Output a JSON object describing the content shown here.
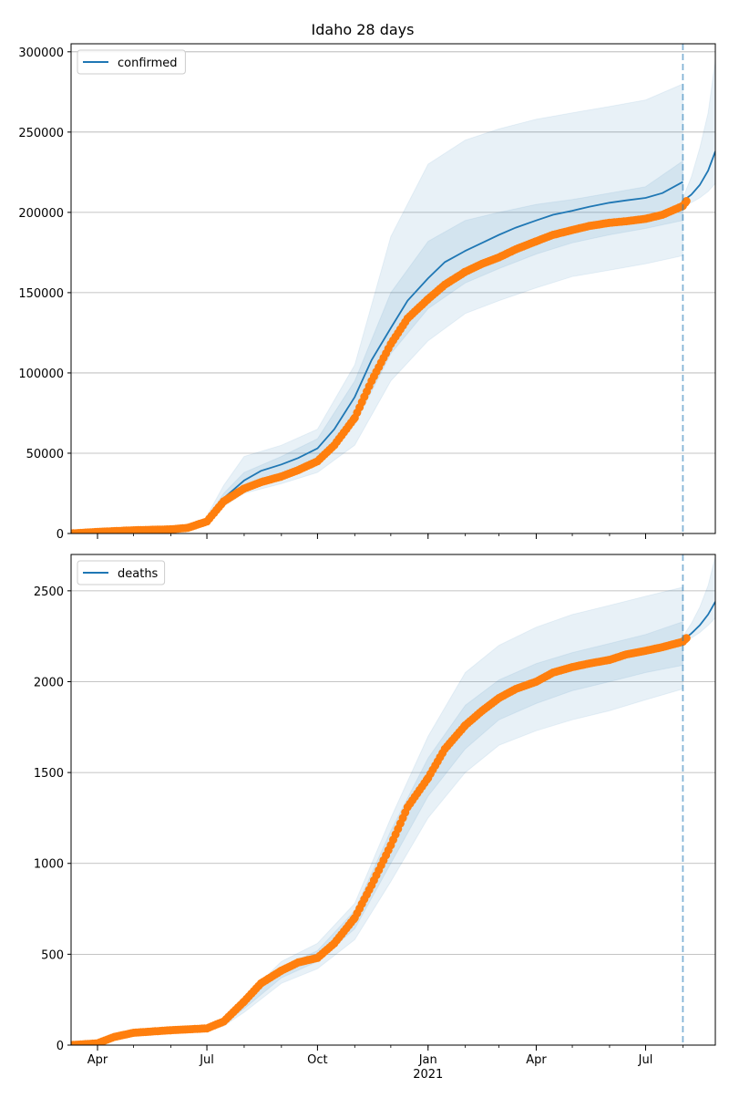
{
  "figure": {
    "title": "Idaho 28 days"
  },
  "chart_data": [
    {
      "type": "line",
      "title": "Idaho 28 days",
      "xlabel": "",
      "ylabel": "",
      "ylim": [
        0,
        305000
      ],
      "yticks": [
        0,
        50000,
        100000,
        150000,
        200000,
        250000,
        300000
      ],
      "xlim": [
        "2020-03-10",
        "2021-08-28"
      ],
      "xticks": [
        {
          "date": "2020-04-01",
          "label": "Apr"
        },
        {
          "date": "2020-07-01",
          "label": "Jul"
        },
        {
          "date": "2020-10-01",
          "label": "Oct"
        },
        {
          "date": "2021-01-01",
          "label": "Jan",
          "sublabel": "2021"
        },
        {
          "date": "2021-04-01",
          "label": "Apr"
        },
        {
          "date": "2021-07-01",
          "label": "Jul"
        }
      ],
      "grid": "y",
      "legend": {
        "position": "top-left",
        "entries": [
          "confirmed"
        ]
      },
      "forecast_start": "2021-08-01",
      "series": [
        {
          "name": "confirmed",
          "kind": "model median",
          "color": "#1f77b4",
          "x": [
            "2020-03-10",
            "2020-04-01",
            "2020-05-01",
            "2020-06-01",
            "2020-06-15",
            "2020-07-01",
            "2020-07-15",
            "2020-08-01",
            "2020-08-15",
            "2020-09-01",
            "2020-09-15",
            "2020-10-01",
            "2020-10-15",
            "2020-11-01",
            "2020-11-15",
            "2020-12-01",
            "2020-12-15",
            "2021-01-01",
            "2021-01-15",
            "2021-02-01",
            "2021-02-15",
            "2021-03-01",
            "2021-03-15",
            "2021-04-01",
            "2021-04-15",
            "2021-05-01",
            "2021-05-15",
            "2021-06-01",
            "2021-06-15",
            "2021-07-01",
            "2021-07-15",
            "2021-08-01"
          ],
          "y": [
            0,
            1000,
            2000,
            3000,
            4200,
            8500,
            22000,
            33000,
            39000,
            43000,
            47000,
            53000,
            65000,
            85000,
            108000,
            128000,
            145000,
            159000,
            169000,
            176000,
            181000,
            186000,
            190500,
            195000,
            198500,
            201000,
            203500,
            206000,
            207500,
            209000,
            212000,
            219000
          ]
        },
        {
          "name": "",
          "kind": "model forecast median",
          "color": "#1f77b4",
          "x": [
            "2021-08-01",
            "2021-08-08",
            "2021-08-15",
            "2021-08-22",
            "2021-08-28"
          ],
          "y": [
            207000,
            211000,
            217000,
            226000,
            238000
          ]
        },
        {
          "name": "",
          "kind": "observed",
          "color": "#ff7f0e",
          "x": [
            "2020-03-10",
            "2020-04-01",
            "2020-05-01",
            "2020-06-01",
            "2020-06-15",
            "2020-07-01",
            "2020-07-15",
            "2020-08-01",
            "2020-08-15",
            "2020-09-01",
            "2020-09-15",
            "2020-10-01",
            "2020-10-15",
            "2020-11-01",
            "2020-11-15",
            "2020-12-01",
            "2020-12-15",
            "2021-01-01",
            "2021-01-15",
            "2021-02-01",
            "2021-02-15",
            "2021-03-01",
            "2021-03-15",
            "2021-04-01",
            "2021-04-15",
            "2021-05-01",
            "2021-05-15",
            "2021-06-01",
            "2021-06-15",
            "2021-07-01",
            "2021-07-15",
            "2021-08-01",
            "2021-08-04"
          ],
          "y": [
            0,
            1000,
            2000,
            2600,
            3500,
            7500,
            20000,
            28000,
            32000,
            35500,
            39500,
            45000,
            55000,
            72000,
            95000,
            118000,
            134000,
            146000,
            155000,
            163000,
            168000,
            172000,
            177000,
            182000,
            186000,
            189000,
            191500,
            193500,
            194500,
            196000,
            198500,
            204000,
            207000
          ]
        }
      ],
      "bands": [
        {
          "kind": "outer interval",
          "color": "#1f77b4",
          "x": [
            "2020-07-01",
            "2020-07-15",
            "2020-08-01",
            "2020-09-01",
            "2020-10-01",
            "2020-11-01",
            "2020-12-01",
            "2021-01-01",
            "2021-02-01",
            "2021-03-01",
            "2021-04-01",
            "2021-05-01",
            "2021-06-01",
            "2021-07-01",
            "2021-08-01"
          ],
          "lower": [
            7000,
            17000,
            25000,
            31000,
            38000,
            55000,
            95000,
            120000,
            137000,
            145000,
            153000,
            160000,
            164000,
            168000,
            173000
          ],
          "upper": [
            11000,
            30000,
            48000,
            55000,
            65000,
            105000,
            185000,
            230000,
            245000,
            252000,
            258000,
            262000,
            266000,
            270000,
            280000
          ]
        },
        {
          "kind": "inner interval",
          "color": "#1f77b4",
          "x": [
            "2020-07-01",
            "2020-07-15",
            "2020-08-01",
            "2020-09-01",
            "2020-10-01",
            "2020-11-01",
            "2020-12-01",
            "2021-01-01",
            "2021-02-01",
            "2021-03-01",
            "2021-04-01",
            "2021-05-01",
            "2021-06-01",
            "2021-07-01",
            "2021-08-01"
          ],
          "lower": [
            8000,
            19000,
            29000,
            37000,
            45000,
            68000,
            112000,
            140000,
            156000,
            165000,
            174000,
            181000,
            186000,
            190000,
            195000
          ],
          "upper": [
            9500,
            25000,
            38000,
            48000,
            59000,
            95000,
            150000,
            182000,
            195000,
            200000,
            205000,
            208000,
            212000,
            216000,
            232000
          ]
        },
        {
          "kind": "forecast outer interval",
          "color": "#1f77b4",
          "x": [
            "2021-08-01",
            "2021-08-08",
            "2021-08-15",
            "2021-08-22",
            "2021-08-28"
          ],
          "lower": [
            205000,
            206000,
            209000,
            213000,
            218000
          ],
          "upper": [
            209000,
            222000,
            240000,
            262000,
            295000
          ]
        }
      ]
    },
    {
      "type": "line",
      "title": "",
      "xlabel": "",
      "ylabel": "",
      "ylim": [
        0,
        2700
      ],
      "yticks": [
        0,
        500,
        1000,
        1500,
        2000,
        2500
      ],
      "xlim": [
        "2020-03-10",
        "2021-08-28"
      ],
      "xticks": [
        {
          "date": "2020-04-01",
          "label": "Apr"
        },
        {
          "date": "2020-07-01",
          "label": "Jul"
        },
        {
          "date": "2020-10-01",
          "label": "Oct"
        },
        {
          "date": "2021-01-01",
          "label": "Jan",
          "sublabel": "2021"
        },
        {
          "date": "2021-04-01",
          "label": "Apr"
        },
        {
          "date": "2021-07-01",
          "label": "Jul"
        }
      ],
      "grid": "y",
      "legend": {
        "position": "top-left",
        "entries": [
          "deaths"
        ]
      },
      "forecast_start": "2021-08-01",
      "series": [
        {
          "name": "deaths",
          "kind": "model median",
          "color": "#1f77b4",
          "x": [
            "2020-03-10",
            "2020-04-01",
            "2020-04-15",
            "2020-05-01",
            "2020-06-01",
            "2020-07-01",
            "2020-07-15",
            "2020-08-01",
            "2020-08-15",
            "2020-09-01",
            "2020-09-15",
            "2020-10-01",
            "2020-10-15",
            "2020-11-01",
            "2020-11-15",
            "2020-12-01",
            "2020-12-15",
            "2021-01-01",
            "2021-01-15",
            "2021-02-01",
            "2021-02-15",
            "2021-03-01",
            "2021-03-15",
            "2021-04-01",
            "2021-04-15",
            "2021-05-01",
            "2021-05-15",
            "2021-06-01",
            "2021-06-15",
            "2021-07-01",
            "2021-07-15",
            "2021-08-01"
          ],
          "y": [
            0,
            10,
            40,
            65,
            85,
            95,
            120,
            220,
            330,
            400,
            450,
            490,
            560,
            700,
            880,
            1100,
            1300,
            1470,
            1620,
            1750,
            1830,
            1900,
            1960,
            2010,
            2050,
            2080,
            2100,
            2125,
            2150,
            2170,
            2190,
            2230
          ]
        },
        {
          "name": "",
          "kind": "model forecast median",
          "color": "#1f77b4",
          "x": [
            "2021-08-01",
            "2021-08-08",
            "2021-08-15",
            "2021-08-22",
            "2021-08-28"
          ],
          "y": [
            2230,
            2265,
            2310,
            2370,
            2440
          ]
        },
        {
          "name": "",
          "kind": "observed",
          "color": "#ff7f0e",
          "x": [
            "2020-03-10",
            "2020-04-01",
            "2020-04-15",
            "2020-05-01",
            "2020-06-01",
            "2020-07-01",
            "2020-07-15",
            "2020-08-01",
            "2020-08-15",
            "2020-09-01",
            "2020-09-15",
            "2020-10-01",
            "2020-10-15",
            "2020-11-01",
            "2020-11-15",
            "2020-12-01",
            "2020-12-15",
            "2021-01-01",
            "2021-01-15",
            "2021-02-01",
            "2021-02-15",
            "2021-03-01",
            "2021-03-15",
            "2021-04-01",
            "2021-04-15",
            "2021-05-01",
            "2021-05-15",
            "2021-06-01",
            "2021-06-15",
            "2021-07-01",
            "2021-07-15",
            "2021-08-01",
            "2021-08-04"
          ],
          "y": [
            0,
            10,
            45,
            68,
            82,
            92,
            130,
            240,
            340,
            410,
            455,
            480,
            560,
            700,
            880,
            1100,
            1310,
            1470,
            1630,
            1760,
            1840,
            1910,
            1960,
            2000,
            2050,
            2080,
            2100,
            2120,
            2150,
            2170,
            2190,
            2220,
            2240
          ]
        }
      ],
      "bands": [
        {
          "kind": "outer interval",
          "color": "#1f77b4",
          "x": [
            "2020-07-01",
            "2020-07-15",
            "2020-08-01",
            "2020-09-01",
            "2020-10-01",
            "2020-11-01",
            "2020-12-01",
            "2021-01-01",
            "2021-02-01",
            "2021-03-01",
            "2021-04-01",
            "2021-05-01",
            "2021-06-01",
            "2021-07-01",
            "2021-08-01"
          ],
          "lower": [
            85,
            105,
            180,
            340,
            420,
            580,
            900,
            1250,
            1500,
            1650,
            1730,
            1790,
            1840,
            1900,
            1960
          ],
          "upper": [
            105,
            140,
            260,
            460,
            560,
            780,
            1250,
            1700,
            2050,
            2200,
            2300,
            2370,
            2420,
            2470,
            2520
          ]
        },
        {
          "kind": "inner interval",
          "color": "#1f77b4",
          "x": [
            "2020-07-01",
            "2020-07-15",
            "2020-08-01",
            "2020-09-01",
            "2020-10-01",
            "2020-11-01",
            "2020-12-01",
            "2021-01-01",
            "2021-02-01",
            "2021-03-01",
            "2021-04-01",
            "2021-05-01",
            "2021-06-01",
            "2021-07-01",
            "2021-08-01"
          ],
          "lower": [
            90,
            115,
            200,
            370,
            460,
            640,
            1000,
            1370,
            1630,
            1790,
            1880,
            1950,
            2000,
            2050,
            2090
          ],
          "upper": [
            100,
            130,
            240,
            430,
            520,
            740,
            1180,
            1580,
            1870,
            2010,
            2100,
            2160,
            2210,
            2260,
            2330
          ]
        },
        {
          "kind": "forecast outer interval",
          "color": "#1f77b4",
          "x": [
            "2021-08-01",
            "2021-08-08",
            "2021-08-15",
            "2021-08-22",
            "2021-08-28"
          ],
          "lower": [
            2220,
            2240,
            2270,
            2310,
            2350
          ],
          "upper": [
            2250,
            2320,
            2410,
            2530,
            2690
          ]
        }
      ]
    }
  ]
}
